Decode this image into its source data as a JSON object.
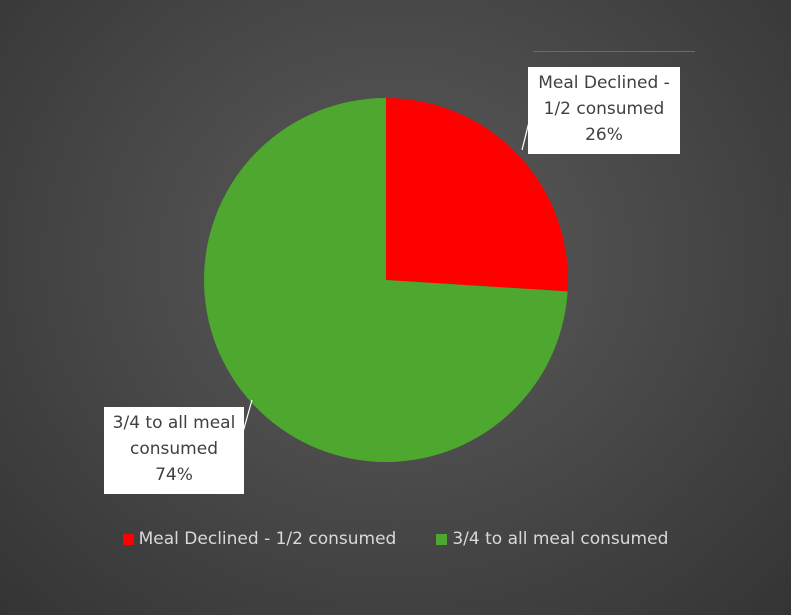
{
  "chart_data": {
    "type": "pie",
    "title": "",
    "slices": [
      {
        "label": "Meal Declined - 1/2 consumed",
        "label_lines": [
          "Meal Declined -",
          "1/2 consumed"
        ],
        "percent_label": "26%",
        "value": 26,
        "color": "#ff0000"
      },
      {
        "label": "3/4 to all meal consumed",
        "label_lines": [
          "3/4 to all meal",
          "consumed"
        ],
        "percent_label": "74%",
        "value": 74,
        "color": "#4ea72e"
      }
    ],
    "legend": {
      "position": "bottom",
      "entries": [
        "Meal Declined - 1/2 consumed",
        "3/4 to all meal consumed"
      ]
    },
    "start_angle": "12 o'clock",
    "direction": "clockwise"
  }
}
